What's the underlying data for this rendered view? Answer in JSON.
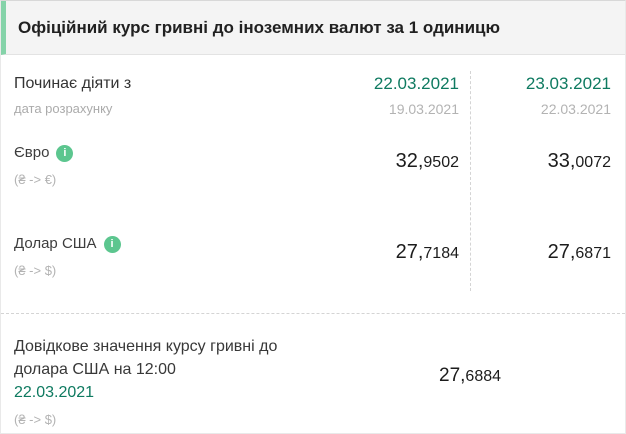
{
  "header": {
    "title": "Офіційний курс гривні до іноземних валют за 1 одиницю"
  },
  "rates": {
    "effective_label": "Починає діяти з",
    "effective_sublabel": "дата розрахунку",
    "columns": [
      {
        "effective_date": "22.03.2021",
        "calculation_date": "19.03.2021"
      },
      {
        "effective_date": "23.03.2021",
        "calculation_date": "22.03.2021"
      }
    ],
    "currencies": [
      {
        "name": "Євро",
        "pair": "(₴ -> €)",
        "values": [
          {
            "display": "32,9502",
            "whole": "32,",
            "frac": "9502"
          },
          {
            "display": "33,0072",
            "whole": "33,",
            "frac": "0072"
          }
        ]
      },
      {
        "name": "Долар США",
        "pair": "(₴ -> $)",
        "values": [
          {
            "display": "27,7184",
            "whole": "27,",
            "frac": "7184"
          },
          {
            "display": "27,6871",
            "whole": "27,",
            "frac": "6871"
          }
        ]
      }
    ]
  },
  "reference": {
    "title_line1": "Довідкове значення курсу гривні до",
    "title_line2": "долара США на 12:00",
    "date": "22.03.2021",
    "pair": "(₴ -> $)",
    "value": {
      "display": "27,6884",
      "whole": "27,",
      "frac": "6884"
    }
  },
  "icons": {
    "info_glyph": "i"
  },
  "colors": {
    "accent_date_green": "#0e7a60",
    "info_icon_green": "#5cc68f",
    "header_accent_green": "#85d3a9",
    "header_background": "#f4f4f4",
    "text_dark": "#212121",
    "text_muted": "#b3b3b3"
  }
}
